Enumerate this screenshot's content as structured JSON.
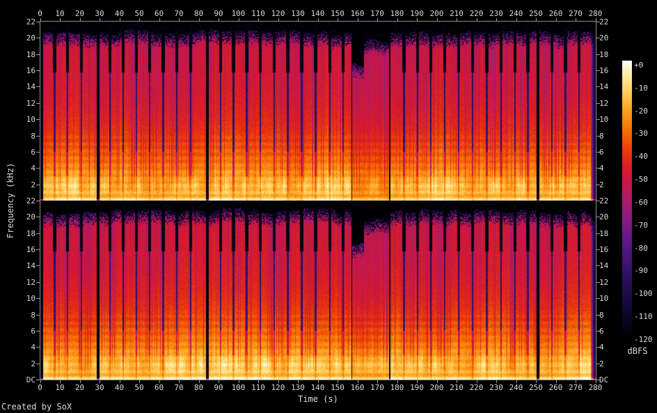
{
  "labels": {
    "time_axis": "Time (s)",
    "frequency_axis": "Frequency (kHz)",
    "credit": "Created by SoX",
    "colorbar_unit": "dBFS"
  },
  "axes": {
    "time_tick_labels": [
      "0",
      "10",
      "20",
      "30",
      "40",
      "50",
      "60",
      "70",
      "80",
      "90",
      "100",
      "110",
      "120",
      "130",
      "140",
      "150",
      "160",
      "170",
      "180",
      "190",
      "200",
      "210",
      "220",
      "230",
      "240",
      "250",
      "260",
      "270",
      "280"
    ],
    "freq_tick_labels_channel1": [
      "22",
      "20",
      "18",
      "16",
      "14",
      "12",
      "10",
      "8",
      "6",
      "4",
      "2"
    ],
    "freq_tick_labels_channel2": [
      "22",
      "20",
      "18",
      "16",
      "14",
      "12",
      "10",
      "8",
      "6",
      "4",
      "2",
      "DC"
    ]
  },
  "chart_data": {
    "type": "heatmap",
    "subtype": "stereo-audio-spectrogram",
    "tool": "SoX",
    "xlabel": "Time (s)",
    "ylabel": "Frequency (kHz)",
    "x_range_s": [
      0,
      280
    ],
    "y_range_khz": [
      0,
      22
    ],
    "x_tick_step_s": 10,
    "y_tick_step_khz": 2,
    "channels": 2,
    "grid": false,
    "colorbar": {
      "unit": "dBFS",
      "range_db": [
        0,
        -120
      ],
      "tick_labels": [
        "+0",
        "-10",
        "-20",
        "-30",
        "-40",
        "-50",
        "-60",
        "-70",
        "-80",
        "-90",
        "-100",
        "-110",
        "-120"
      ],
      "position": "right"
    },
    "palette_stops": [
      [
        0.0,
        "#000000"
      ],
      [
        0.07,
        "#0a0522"
      ],
      [
        0.14,
        "#160b3e"
      ],
      [
        0.22,
        "#2c1060"
      ],
      [
        0.3,
        "#4b137f"
      ],
      [
        0.37,
        "#6d168c"
      ],
      [
        0.44,
        "#8f1a83"
      ],
      [
        0.5,
        "#ad1a69"
      ],
      [
        0.56,
        "#c61647"
      ],
      [
        0.62,
        "#db1d24"
      ],
      [
        0.68,
        "#ea3c08"
      ],
      [
        0.74,
        "#f56903"
      ],
      [
        0.8,
        "#fb9213"
      ],
      [
        0.86,
        "#ffbc3f"
      ],
      [
        0.92,
        "#ffdf7d"
      ],
      [
        0.96,
        "#fff0b2"
      ],
      [
        1.0,
        "#ffffff"
      ]
    ],
    "freq_profile": [
      [
        0.0,
        0.95
      ],
      [
        0.15,
        0.93
      ],
      [
        0.35,
        0.87
      ],
      [
        0.6,
        0.845
      ],
      [
        1.0,
        0.875
      ],
      [
        2.0,
        0.875
      ],
      [
        2.8,
        0.835
      ],
      [
        3.6,
        0.8
      ],
      [
        4.5,
        0.765
      ],
      [
        5.5,
        0.735
      ],
      [
        7.0,
        0.695
      ],
      [
        8.5,
        0.665
      ],
      [
        10.0,
        0.64
      ],
      [
        12.0,
        0.615
      ],
      [
        14.0,
        0.6
      ],
      [
        16.5,
        0.59
      ],
      [
        18.5,
        0.58
      ],
      [
        19.6,
        0.57
      ],
      [
        20.4,
        0.55
      ],
      [
        22.0,
        0.53
      ]
    ],
    "sections": [
      {
        "start": 1.2,
        "end": 28.1,
        "top_khz": 20.1,
        "fuzz": 0.45,
        "level": 1.0
      },
      {
        "start": 29.5,
        "end": 83.2,
        "top_khz": 20.25,
        "fuzz": 0.95,
        "level": 1.0
      },
      {
        "start": 84.7,
        "end": 156.6,
        "top_khz": 20.25,
        "fuzz": 0.9,
        "level": 1.0
      },
      {
        "start": 157.0,
        "end": 163.0,
        "top_khz": 16.4,
        "fuzz": 0.3,
        "level": 0.94
      },
      {
        "start": 163.0,
        "end": 175.7,
        "top_khz": 19.2,
        "fuzz": 1.0,
        "level": 0.94
      },
      {
        "start": 176.3,
        "end": 249.9,
        "top_khz": 20.25,
        "fuzz": 0.9,
        "level": 1.0
      },
      {
        "start": 251.3,
        "end": 277.2,
        "top_khz": 20.05,
        "fuzz": 0.7,
        "level": 1.0
      },
      {
        "start": 277.2,
        "end": 280.0,
        "top_khz": 19.8,
        "fuzz": 0.5,
        "level": 1.0,
        "fade_out": true
      }
    ],
    "track_gaps": {
      "times_s": [
        7.0,
        13.6,
        20.6,
        34.8,
        41.5,
        48.2,
        55.0,
        61.8,
        68.7,
        75.6,
        90.6,
        97.2,
        103.9,
        110.8,
        117.7,
        124.6,
        131.6,
        138.6,
        145.7,
        152.4,
        183.2,
        189.9,
        196.7,
        203.6,
        210.6,
        217.7,
        224.9,
        232.1,
        239.2,
        245.6,
        257.7,
        264.6,
        271.4
      ],
      "width_s": 0.8,
      "notch_khz": 16
    },
    "seeds": [
      101,
      202
    ]
  }
}
